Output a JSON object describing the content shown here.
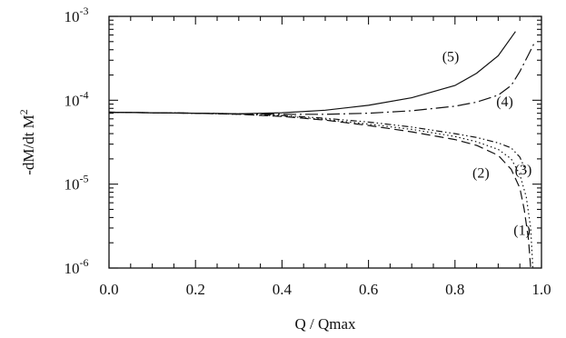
{
  "chart_data": {
    "type": "line",
    "xlabel": "Q / Qmax",
    "ylabel_base": "-dM/dt M",
    "ylabel_sup": "2",
    "xlim": [
      0.0,
      1.0
    ],
    "ylim": [
      1e-06,
      0.001
    ],
    "yscale": "log",
    "x_ticks": [
      "0.0",
      "0.2",
      "0.4",
      "0.6",
      "0.8",
      "1.0"
    ],
    "y_ticks": [
      {
        "base": "10",
        "exp": "-3",
        "value": 0.001
      },
      {
        "base": "10",
        "exp": "-4",
        "value": 0.0001
      },
      {
        "base": "10",
        "exp": "-5",
        "value": 1e-05
      },
      {
        "base": "10",
        "exp": "-6",
        "value": 1e-06
      }
    ],
    "grid": false,
    "series": [
      {
        "label": "(1)",
        "dash": "dashed",
        "label_pos": [
          0.955,
          2.5e-06
        ],
        "points": [
          [
            0.0,
            7.2e-05
          ],
          [
            0.1,
            7.1e-05
          ],
          [
            0.2,
            7e-05
          ],
          [
            0.3,
            6.8e-05
          ],
          [
            0.4,
            6.4e-05
          ],
          [
            0.5,
            5.8e-05
          ],
          [
            0.6,
            5e-05
          ],
          [
            0.7,
            4.2e-05
          ],
          [
            0.8,
            3.4e-05
          ],
          [
            0.85,
            2.9e-05
          ],
          [
            0.9,
            2.2e-05
          ],
          [
            0.93,
            1.5e-05
          ],
          [
            0.95,
            9e-06
          ],
          [
            0.96,
            5e-06
          ],
          [
            0.97,
            2.2e-06
          ],
          [
            0.975,
            1e-06
          ]
        ]
      },
      {
        "label": "(2)",
        "dash": "dotted",
        "label_pos": [
          0.86,
          1.2e-05
        ],
        "points": [
          [
            0.0,
            7.2e-05
          ],
          [
            0.1,
            7.1e-05
          ],
          [
            0.2,
            7e-05
          ],
          [
            0.3,
            6.8e-05
          ],
          [
            0.4,
            6.5e-05
          ],
          [
            0.5,
            5.9e-05
          ],
          [
            0.6,
            5.2e-05
          ],
          [
            0.7,
            4.5e-05
          ],
          [
            0.8,
            3.7e-05
          ],
          [
            0.85,
            3.2e-05
          ],
          [
            0.9,
            2.6e-05
          ],
          [
            0.93,
            2e-05
          ],
          [
            0.95,
            1.3e-05
          ],
          [
            0.965,
            7e-06
          ],
          [
            0.975,
            3e-06
          ],
          [
            0.98,
            1e-06
          ]
        ]
      },
      {
        "label": "(3)",
        "dash": "dash-dot-dot",
        "label_pos": [
          0.958,
          1.3e-05
        ],
        "points": [
          [
            0.0,
            7.2e-05
          ],
          [
            0.1,
            7.1e-05
          ],
          [
            0.2,
            7e-05
          ],
          [
            0.3,
            6.9e-05
          ],
          [
            0.4,
            6.6e-05
          ],
          [
            0.5,
            6.1e-05
          ],
          [
            0.6,
            5.5e-05
          ],
          [
            0.7,
            4.8e-05
          ],
          [
            0.8,
            4e-05
          ],
          [
            0.85,
            3.6e-05
          ],
          [
            0.9,
            3.1e-05
          ],
          [
            0.93,
            2.7e-05
          ],
          [
            0.95,
            2.1e-05
          ],
          [
            0.965,
            1.4e-05
          ]
        ]
      },
      {
        "label": "(4)",
        "dash": "long-dash-dot",
        "label_pos": [
          0.915,
          8.5e-05
        ],
        "points": [
          [
            0.0,
            7.2e-05
          ],
          [
            0.1,
            7.1e-05
          ],
          [
            0.2,
            7e-05
          ],
          [
            0.3,
            6.9e-05
          ],
          [
            0.4,
            6.8e-05
          ],
          [
            0.5,
            6.8e-05
          ],
          [
            0.6,
            7e-05
          ],
          [
            0.7,
            7.5e-05
          ],
          [
            0.8,
            8.5e-05
          ],
          [
            0.85,
            9.5e-05
          ],
          [
            0.9,
            0.000115
          ],
          [
            0.93,
            0.00015
          ],
          [
            0.95,
            0.00022
          ],
          [
            0.97,
            0.00035
          ],
          [
            0.985,
            0.0005
          ]
        ]
      },
      {
        "label": "(5)",
        "dash": "solid",
        "label_pos": [
          0.79,
          0.00029
        ],
        "points": [
          [
            0.0,
            7.2e-05
          ],
          [
            0.1,
            7.1e-05
          ],
          [
            0.2,
            7e-05
          ],
          [
            0.3,
            6.9e-05
          ],
          [
            0.4,
            7.1e-05
          ],
          [
            0.5,
            7.6e-05
          ],
          [
            0.6,
            8.7e-05
          ],
          [
            0.7,
            0.000107
          ],
          [
            0.8,
            0.00015
          ],
          [
            0.85,
            0.00021
          ],
          [
            0.9,
            0.00034
          ],
          [
            0.93,
            0.00056
          ],
          [
            0.94,
            0.00066
          ]
        ]
      }
    ]
  }
}
